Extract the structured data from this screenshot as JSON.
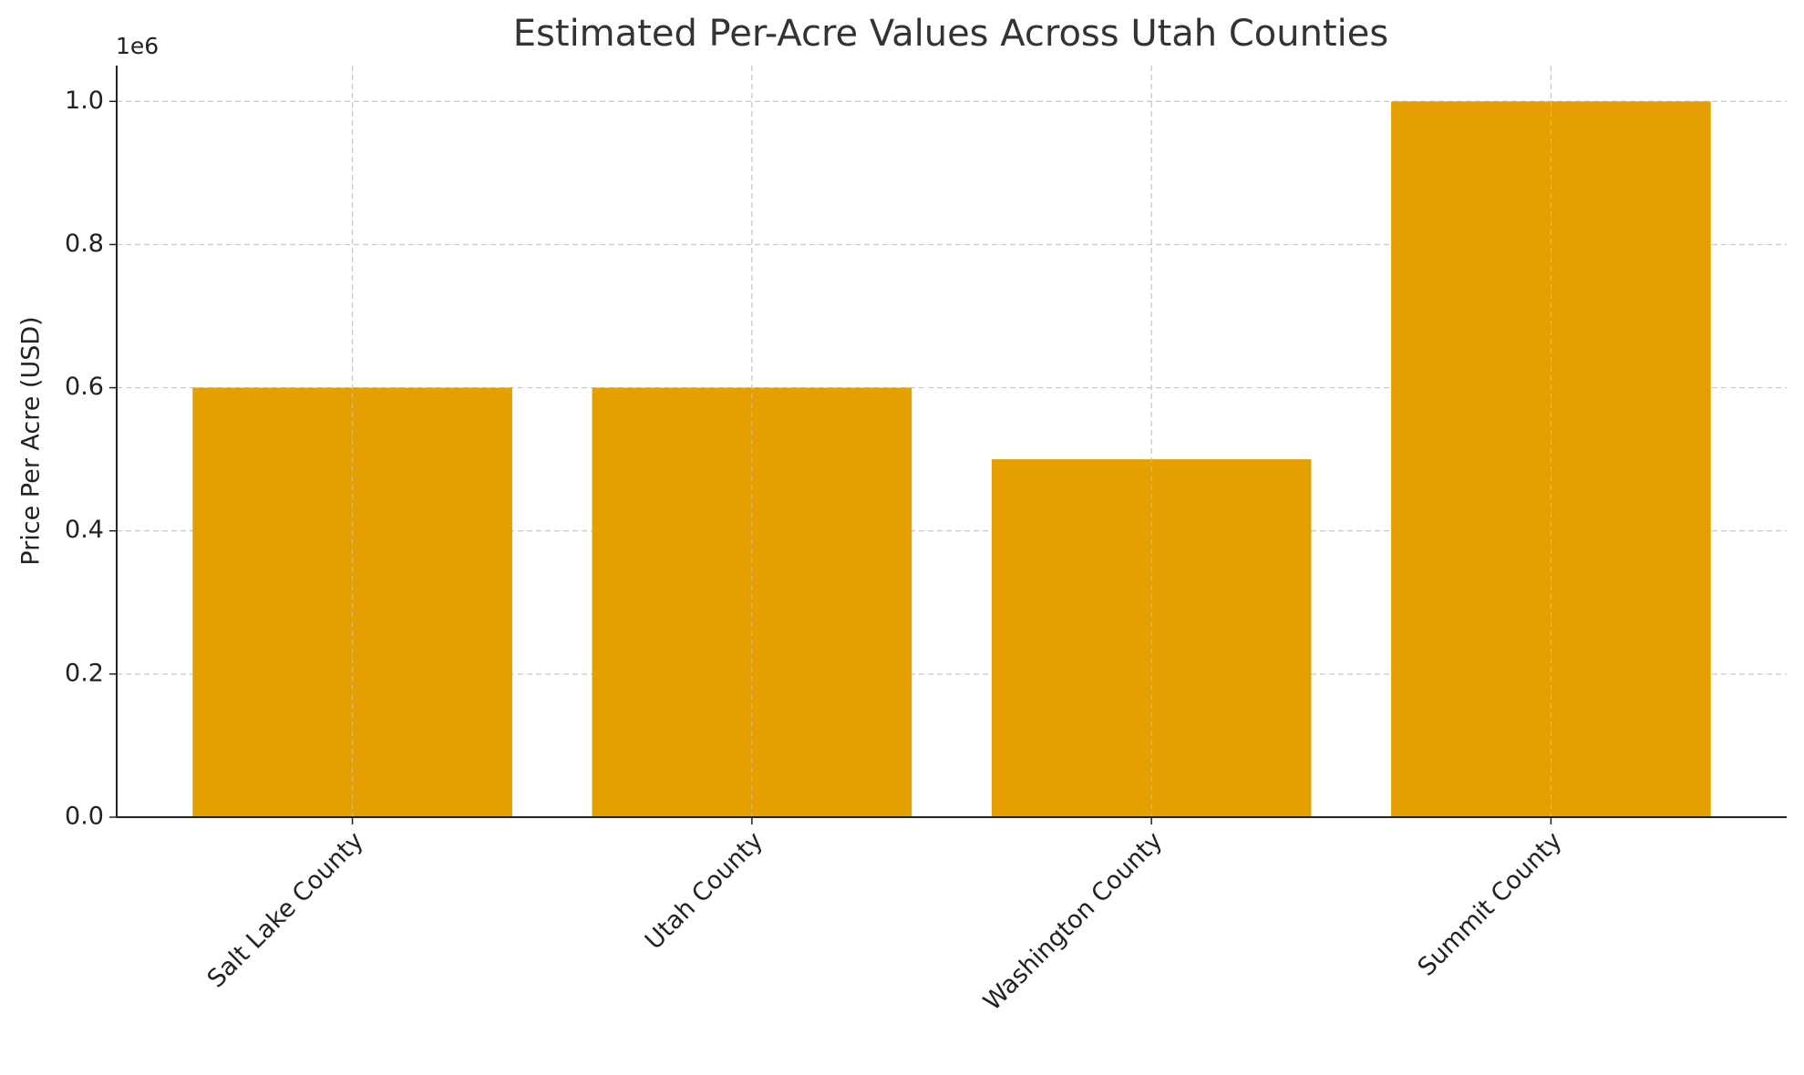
{
  "chart_data": {
    "type": "bar",
    "title": "Estimated Per-Acre Values Across Utah Counties",
    "y_label": "Price Per Acre (USD)",
    "y_offset_label": "1e6",
    "categories": [
      "Salt Lake County",
      "Utah County",
      "Washington County",
      "Summit County"
    ],
    "values": [
      600000,
      600000,
      500000,
      1000000
    ],
    "color": "#e5a000",
    "ylim": [
      0,
      1050000
    ],
    "yticks": [
      {
        "value": 0,
        "label": "0.0"
      },
      {
        "value": 200000,
        "label": "0.2"
      },
      {
        "value": 400000,
        "label": "0.4"
      },
      {
        "value": 600000,
        "label": "0.6"
      },
      {
        "value": 800000,
        "label": "0.8"
      },
      {
        "value": 1000000,
        "label": "1.0"
      }
    ],
    "grid": true
  }
}
